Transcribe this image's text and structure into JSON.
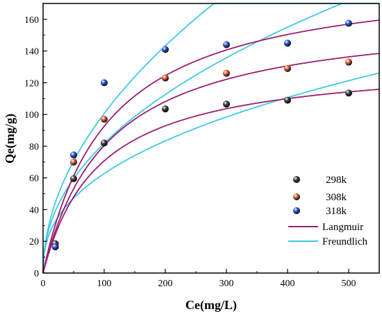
{
  "chart_data": {
    "type": "scatter",
    "xlabel": "Ce(mg/L)",
    "ylabel": "Qe(mg/g)",
    "xlim": [
      0,
      550
    ],
    "ylim": [
      0,
      170
    ],
    "xticks": [
      0,
      100,
      200,
      300,
      400,
      500
    ],
    "yticks": [
      0,
      20,
      40,
      60,
      80,
      100,
      120,
      140,
      160
    ],
    "grid": false,
    "legend_position": "right",
    "series": [
      {
        "name": "298k",
        "color": "#3c3c3c",
        "x": [
          20,
          50,
          100,
          200,
          300,
          400,
          500
        ],
        "y": [
          18.5,
          59.5,
          82,
          103.5,
          106.5,
          109,
          113.5
        ]
      },
      {
        "name": "308k",
        "color": "#e0603a",
        "x": [
          50,
          100,
          200,
          300,
          400,
          500
        ],
        "y": [
          70,
          97,
          123,
          126,
          129,
          133
        ]
      },
      {
        "name": "318k",
        "color": "#2a55e6",
        "x": [
          20,
          50,
          100,
          200,
          300,
          400,
          500
        ],
        "y": [
          16.5,
          74.5,
          120,
          141,
          144,
          145,
          157.5
        ]
      }
    ],
    "fits": [
      {
        "name": "Langmuir",
        "color": "#9b1c6f",
        "model": "langmuir",
        "curves": [
          {
            "qm": 135,
            "kl": 0.011
          },
          {
            "qm": 165,
            "kl": 0.0095
          },
          {
            "qm": 190,
            "kl": 0.0095
          }
        ]
      },
      {
        "name": "Freundlich",
        "color": "#3fc9e3",
        "model": "freundlich",
        "curves": [
          {
            "kf": 9.5,
            "n": 2.44
          },
          {
            "kf": 9.8,
            "n": 2.17
          },
          {
            "kf": 9.6,
            "n": 1.96
          }
        ]
      }
    ]
  }
}
